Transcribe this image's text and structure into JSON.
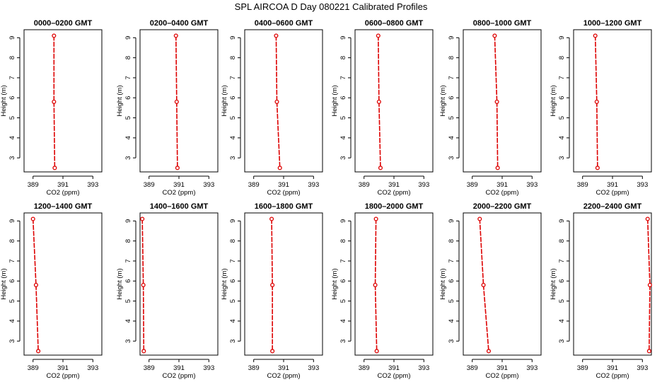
{
  "title": "SPL AIRCOA D  Day 080221  Calibrated Profiles",
  "colors": {
    "series": "#dd0000",
    "axis": "#000000"
  },
  "chart_data": [
    {
      "type": "line",
      "title": "0000–0200 GMT",
      "xlabel": "CO2 (ppm)",
      "ylabel": "Height (m)",
      "xlim": [
        388.4,
        393.6
      ],
      "ylim": [
        2.3,
        9.4
      ],
      "x_ticks": [
        "389",
        "391",
        "393"
      ],
      "y_ticks": [
        "3",
        "4",
        "5",
        "6",
        "7",
        "8",
        "9"
      ],
      "series": [
        {
          "x": [
            390.4,
            390.4,
            390.45
          ],
          "y": [
            9.1,
            5.8,
            2.5
          ]
        }
      ]
    },
    {
      "type": "line",
      "title": "0200–0400 GMT",
      "xlabel": "CO2 (ppm)",
      "ylabel": "Height (m)",
      "xlim": [
        388.4,
        393.6
      ],
      "ylim": [
        2.3,
        9.4
      ],
      "x_ticks": [
        "389",
        "391",
        "393"
      ],
      "y_ticks": [
        "3",
        "4",
        "5",
        "6",
        "7",
        "8",
        "9"
      ],
      "series": [
        {
          "x": [
            390.8,
            390.85,
            390.9
          ],
          "y": [
            9.1,
            5.8,
            2.5
          ]
        }
      ]
    },
    {
      "type": "line",
      "title": "0400–0600 GMT",
      "xlabel": "CO2 (ppm)",
      "ylabel": "Height (m)",
      "xlim": [
        388.4,
        393.6
      ],
      "ylim": [
        2.3,
        9.4
      ],
      "x_ticks": [
        "389",
        "391",
        "393"
      ],
      "y_ticks": [
        "3",
        "4",
        "5",
        "6",
        "7",
        "8",
        "9"
      ],
      "series": [
        {
          "x": [
            390.5,
            390.55,
            390.75
          ],
          "y": [
            9.1,
            5.8,
            2.5
          ]
        }
      ]
    },
    {
      "type": "line",
      "title": "0600–0800 GMT",
      "xlabel": "CO2 (ppm)",
      "ylabel": "Height (m)",
      "xlim": [
        388.4,
        393.6
      ],
      "ylim": [
        2.3,
        9.4
      ],
      "x_ticks": [
        "389",
        "391",
        "393"
      ],
      "y_ticks": [
        "3",
        "4",
        "5",
        "6",
        "7",
        "8",
        "9"
      ],
      "series": [
        {
          "x": [
            389.95,
            390.0,
            390.1
          ],
          "y": [
            9.1,
            5.8,
            2.5
          ]
        }
      ]
    },
    {
      "type": "line",
      "title": "0800–1000 GMT",
      "xlabel": "CO2 (ppm)",
      "ylabel": "Height (m)",
      "xlim": [
        388.4,
        393.6
      ],
      "ylim": [
        2.3,
        9.4
      ],
      "x_ticks": [
        "389",
        "391",
        "393"
      ],
      "y_ticks": [
        "3",
        "4",
        "5",
        "6",
        "7",
        "8",
        "9"
      ],
      "series": [
        {
          "x": [
            390.5,
            390.65,
            390.7
          ],
          "y": [
            9.1,
            5.8,
            2.5
          ]
        }
      ]
    },
    {
      "type": "line",
      "title": "1000–1200 GMT",
      "xlabel": "CO2 (ppm)",
      "ylabel": "Height (m)",
      "xlim": [
        388.4,
        393.6
      ],
      "ylim": [
        2.3,
        9.4
      ],
      "x_ticks": [
        "389",
        "391",
        "393"
      ],
      "y_ticks": [
        "3",
        "4",
        "5",
        "6",
        "7",
        "8",
        "9"
      ],
      "series": [
        {
          "x": [
            389.85,
            389.95,
            390.0
          ],
          "y": [
            9.1,
            5.8,
            2.5
          ]
        }
      ]
    },
    {
      "type": "line",
      "title": "1200–1400 GMT",
      "xlabel": "CO2 (ppm)",
      "ylabel": "Height (m)",
      "xlim": [
        388.4,
        393.6
      ],
      "ylim": [
        2.3,
        9.4
      ],
      "x_ticks": [
        "389",
        "391",
        "393"
      ],
      "y_ticks": [
        "3",
        "4",
        "5",
        "6",
        "7",
        "8",
        "9"
      ],
      "series": [
        {
          "x": [
            389.0,
            389.2,
            389.35
          ],
          "y": [
            9.1,
            5.8,
            2.5
          ]
        }
      ]
    },
    {
      "type": "line",
      "title": "1400–1600 GMT",
      "xlabel": "CO2 (ppm)",
      "ylabel": "Height (m)",
      "xlim": [
        388.4,
        393.6
      ],
      "ylim": [
        2.3,
        9.4
      ],
      "x_ticks": [
        "389",
        "391",
        "393"
      ],
      "y_ticks": [
        "3",
        "4",
        "5",
        "6",
        "7",
        "8",
        "9"
      ],
      "series": [
        {
          "x": [
            388.55,
            388.62,
            388.65
          ],
          "y": [
            9.1,
            5.8,
            2.5
          ]
        }
      ]
    },
    {
      "type": "line",
      "title": "1600–1800 GMT",
      "xlabel": "CO2 (ppm)",
      "ylabel": "Height (m)",
      "xlim": [
        388.4,
        393.6
      ],
      "ylim": [
        2.3,
        9.4
      ],
      "x_ticks": [
        "389",
        "391",
        "393"
      ],
      "y_ticks": [
        "3",
        "4",
        "5",
        "6",
        "7",
        "8",
        "9"
      ],
      "series": [
        {
          "x": [
            390.2,
            390.25,
            390.25
          ],
          "y": [
            9.1,
            5.8,
            2.5
          ]
        }
      ]
    },
    {
      "type": "line",
      "title": "1800–2000 GMT",
      "xlabel": "CO2 (ppm)",
      "ylabel": "Height (m)",
      "xlim": [
        388.4,
        393.6
      ],
      "ylim": [
        2.3,
        9.4
      ],
      "x_ticks": [
        "389",
        "391",
        "393"
      ],
      "y_ticks": [
        "3",
        "4",
        "5",
        "6",
        "7",
        "8",
        "9"
      ],
      "series": [
        {
          "x": [
            389.8,
            389.75,
            389.85
          ],
          "y": [
            9.1,
            5.8,
            2.5
          ]
        }
      ]
    },
    {
      "type": "line",
      "title": "2000–2200 GMT",
      "xlabel": "CO2 (ppm)",
      "ylabel": "Height (m)",
      "xlim": [
        388.4,
        393.6
      ],
      "ylim": [
        2.3,
        9.4
      ],
      "x_ticks": [
        "389",
        "391",
        "393"
      ],
      "y_ticks": [
        "3",
        "4",
        "5",
        "6",
        "7",
        "8",
        "9"
      ],
      "series": [
        {
          "x": [
            389.5,
            389.75,
            390.1
          ],
          "y": [
            9.1,
            5.8,
            2.5
          ]
        }
      ]
    },
    {
      "type": "line",
      "title": "2200–2400 GMT",
      "xlabel": "CO2 (ppm)",
      "ylabel": "Height (m)",
      "xlim": [
        388.4,
        393.6
      ],
      "ylim": [
        2.3,
        9.4
      ],
      "x_ticks": [
        "389",
        "391",
        "393"
      ],
      "y_ticks": [
        "3",
        "4",
        "5",
        "6",
        "7",
        "8",
        "9"
      ],
      "series": [
        {
          "x": [
            393.35,
            393.5,
            393.45
          ],
          "y": [
            9.1,
            5.8,
            2.5
          ]
        }
      ]
    }
  ]
}
